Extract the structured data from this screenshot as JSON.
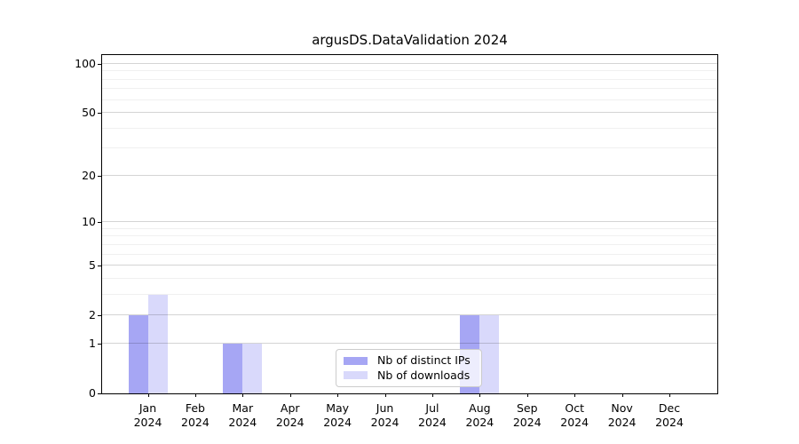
{
  "chart_data": {
    "type": "bar",
    "title": "argusDS.DataValidation 2024",
    "categories": [
      [
        "Jan",
        "2024"
      ],
      [
        "Feb",
        "2024"
      ],
      [
        "Mar",
        "2024"
      ],
      [
        "Apr",
        "2024"
      ],
      [
        "May",
        "2024"
      ],
      [
        "Jun",
        "2024"
      ],
      [
        "Jul",
        "2024"
      ],
      [
        "Aug",
        "2024"
      ],
      [
        "Sep",
        "2024"
      ],
      [
        "Oct",
        "2024"
      ],
      [
        "Nov",
        "2024"
      ],
      [
        "Dec",
        "2024"
      ]
    ],
    "series": [
      {
        "name": "Nb of distinct IPs",
        "color": "#a6a6f4",
        "values": [
          2,
          0,
          1,
          0,
          0,
          0,
          0,
          2,
          0,
          0,
          0,
          0
        ]
      },
      {
        "name": "Nb of downloads",
        "color": "#d9d9fb",
        "values": [
          3,
          0,
          1,
          0,
          0,
          0,
          0,
          2,
          0,
          0,
          0,
          0
        ]
      }
    ],
    "xlabel": "",
    "ylabel": "",
    "yscale": "log1p",
    "ylim": [
      0,
      113
    ],
    "y_major_ticks": [
      100,
      50,
      20,
      10,
      5,
      2,
      1,
      0
    ],
    "y_minor_gridlines": [
      3,
      4,
      6,
      7,
      8,
      9,
      30,
      40,
      60,
      70,
      80,
      90
    ],
    "grid": "horizontal",
    "grid_above_bars": true,
    "legend_position": "lower center inside",
    "axis_color": "#000000",
    "grid_major_color": "#d9d9d9",
    "grid_minor_color": "#efefef",
    "background_color": "#ffffff"
  }
}
